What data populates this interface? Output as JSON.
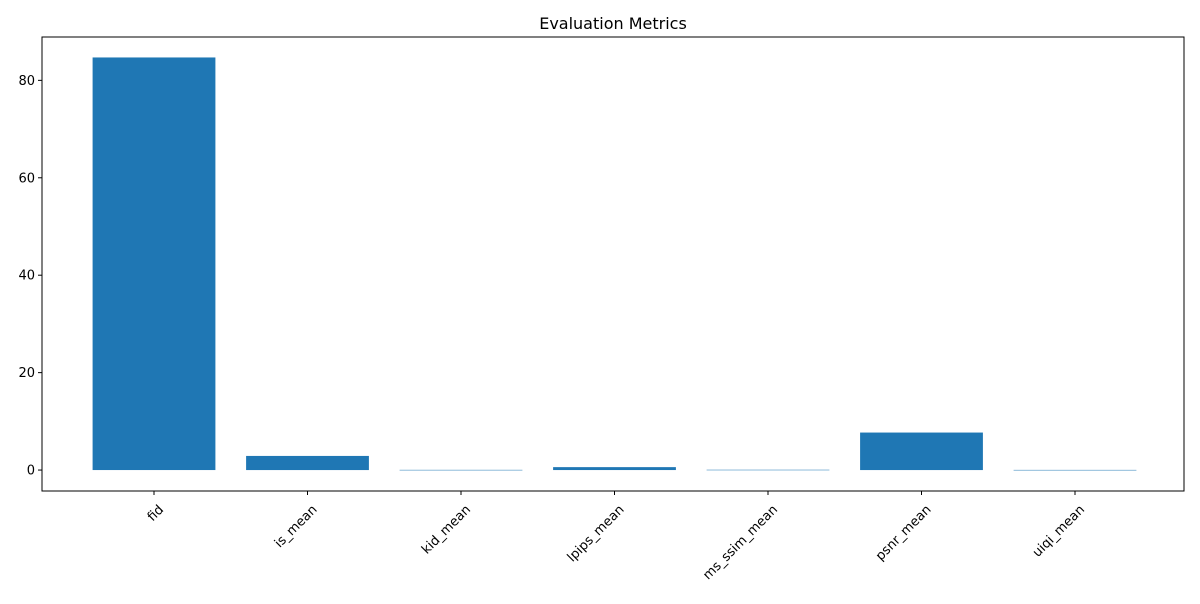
{
  "chart_data": {
    "type": "bar",
    "title": "Evaluation Metrics",
    "xlabel": "",
    "ylabel": "",
    "categories": [
      "fid",
      "is_mean",
      "kid_mean",
      "lpips_mean",
      "ms_ssim_mean",
      "psnr_mean",
      "uiqi_mean"
    ],
    "values": [
      84.7,
      2.9,
      0.04,
      0.6,
      0.06,
      7.7,
      0.03
    ],
    "ylim": [
      -4.3,
      88.9
    ],
    "yticks": [
      0,
      20,
      40,
      60,
      80
    ],
    "xtick_rotation": 45,
    "grid": false,
    "bar_color": "#1f77b4"
  }
}
